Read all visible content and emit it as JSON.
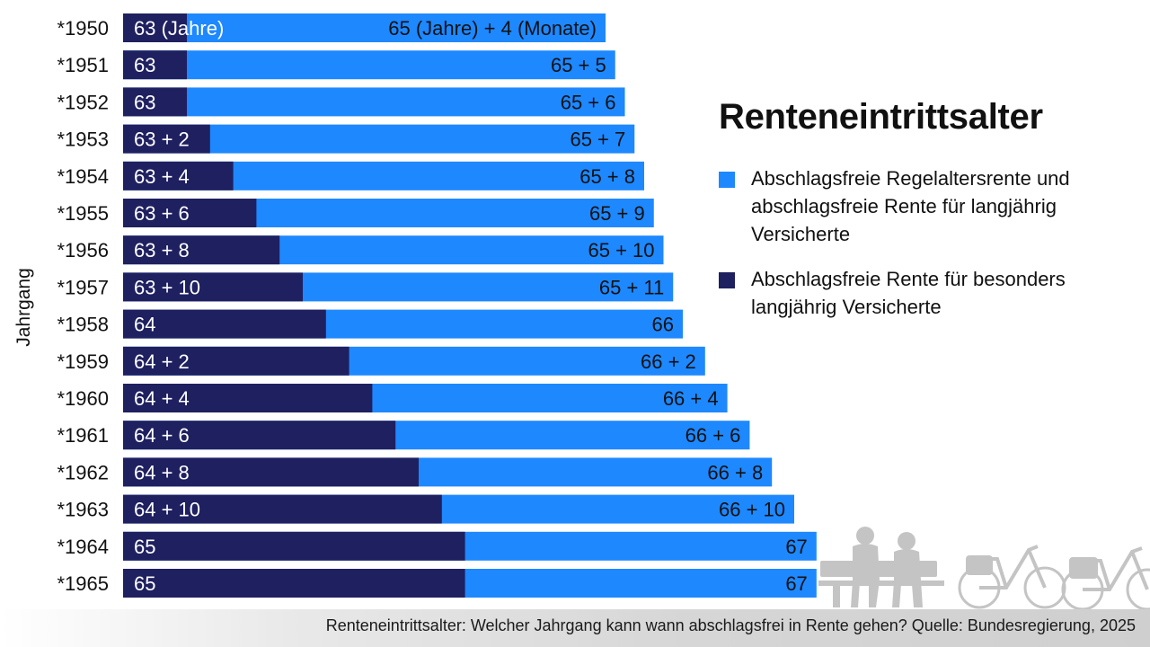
{
  "title": "Renteneintrittsalter",
  "y_axis_title": "Jahrgang",
  "legend": [
    {
      "label": "Abschlagsfreie Regelaltersrente und abschlagsfreie Rente für langjährig Versicherte",
      "color": "#1e88ff"
    },
    {
      "label": "Abschlagsfreie Rente für besonders langjährig Versicherte",
      "color": "#1f2060"
    }
  ],
  "footer": "Renteneintrittsalter: Welcher Jahrgang kann wann abschlagsfrei in Rente gehen? Quelle: Bundesregierung, 2025",
  "illustration": "seniors-on-bench-and-bicycles-silhouette",
  "chart_data": {
    "type": "bar",
    "orientation": "horizontal",
    "stacked": false,
    "overlay": true,
    "title": "Renteneintrittsalter",
    "ylabel": "Jahrgang",
    "xlabel": "",
    "value_unit": "age in years + months",
    "categories": [
      "*1950",
      "*1951",
      "*1952",
      "*1953",
      "*1954",
      "*1955",
      "*1956",
      "*1957",
      "*1958",
      "*1959",
      "*1960",
      "*1961",
      "*1962",
      "*1963",
      "*1964",
      "*1965"
    ],
    "series": [
      {
        "name": "Abschlagsfreie Rente für besonders langjährig Versicherte",
        "color": "#1f2060",
        "years": [
          63,
          63,
          63,
          63,
          63,
          63,
          63,
          63,
          64,
          64,
          64,
          64,
          64,
          64,
          65,
          65
        ],
        "months": [
          0,
          0,
          0,
          2,
          4,
          6,
          8,
          10,
          0,
          2,
          4,
          6,
          8,
          10,
          0,
          0
        ],
        "labels": [
          "63 (Jahre)",
          "63",
          "63",
          "63 + 2",
          "63 + 4",
          "63 + 6",
          "63 + 8",
          "63 + 10",
          "64",
          "64 + 2",
          "64 + 4",
          "64 + 6",
          "64 + 8",
          "64 + 10",
          "65",
          "65"
        ]
      },
      {
        "name": "Abschlagsfreie Regelaltersrente und abschlagsfreie Rente für langjährig Versicherte",
        "color": "#1e88ff",
        "years": [
          65,
          65,
          65,
          65,
          65,
          65,
          65,
          65,
          66,
          66,
          66,
          66,
          66,
          66,
          67,
          67
        ],
        "months": [
          4,
          5,
          6,
          7,
          8,
          9,
          10,
          11,
          0,
          2,
          4,
          6,
          8,
          10,
          0,
          0
        ],
        "labels": [
          "65 (Jahre) + 4 (Monate)",
          "65 + 5",
          "65 + 6",
          "65 + 7",
          "65 + 8",
          "65 + 9",
          "65 + 10",
          "65 + 11",
          "66",
          "66 + 2",
          "66 + 4",
          "66 + 6",
          "66 + 8",
          "66 + 10",
          "67",
          "67"
        ]
      }
    ],
    "grid": false,
    "legend_position": "right"
  }
}
